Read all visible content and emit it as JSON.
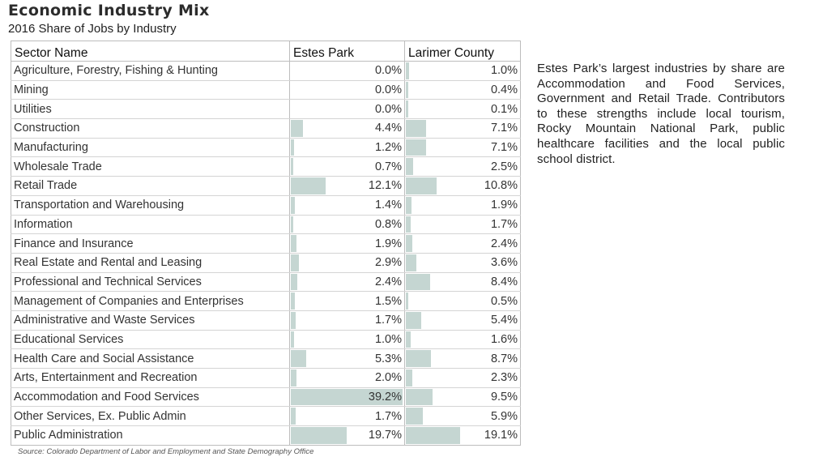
{
  "title": "Economic Industry Mix",
  "subtitle": "2016 Share of Jobs by Industry",
  "table": {
    "headers": [
      "Sector Name",
      "Estes Park",
      "Larimer County"
    ],
    "rows": [
      {
        "sector": "Agriculture, Forestry, Fishing & Hunting",
        "estes": 0.0,
        "larimer": 1.0
      },
      {
        "sector": "Mining",
        "estes": 0.0,
        "larimer": 0.4
      },
      {
        "sector": "Utilities",
        "estes": 0.0,
        "larimer": 0.1
      },
      {
        "sector": "Construction",
        "estes": 4.4,
        "larimer": 7.1
      },
      {
        "sector": "Manufacturing",
        "estes": 1.2,
        "larimer": 7.1
      },
      {
        "sector": "Wholesale Trade",
        "estes": 0.7,
        "larimer": 2.5
      },
      {
        "sector": "Retail Trade",
        "estes": 12.1,
        "larimer": 10.8
      },
      {
        "sector": "Transportation and Warehousing",
        "estes": 1.4,
        "larimer": 1.9
      },
      {
        "sector": "Information",
        "estes": 0.8,
        "larimer": 1.7
      },
      {
        "sector": "Finance and Insurance",
        "estes": 1.9,
        "larimer": 2.4
      },
      {
        "sector": "Real Estate and Rental and Leasing",
        "estes": 2.9,
        "larimer": 3.6
      },
      {
        "sector": "Professional and Technical Services",
        "estes": 2.4,
        "larimer": 8.4
      },
      {
        "sector": "Management of Companies and Enterprises",
        "estes": 1.5,
        "larimer": 0.5
      },
      {
        "sector": "Administrative and Waste Services",
        "estes": 1.7,
        "larimer": 5.4
      },
      {
        "sector": "Educational Services",
        "estes": 1.0,
        "larimer": 1.6
      },
      {
        "sector": "Health Care and Social Assistance",
        "estes": 5.3,
        "larimer": 8.7
      },
      {
        "sector": "Arts, Entertainment and Recreation",
        "estes": 2.0,
        "larimer": 2.3
      },
      {
        "sector": "Accommodation and Food Services",
        "estes": 39.2,
        "larimer": 9.5
      },
      {
        "sector": "Other Services, Ex. Public Admin",
        "estes": 1.7,
        "larimer": 5.9
      },
      {
        "sector": "Public Administration",
        "estes": 19.7,
        "larimer": 19.1
      }
    ]
  },
  "source": "Source: Colorado Department of Labor and Employment and State Demography Office",
  "note": "Estes Park’s largest industries by share are Accommodation and Food Services, Government and Retail Trade. Contributors to these strengths include local tourism, Rocky Mountain National Park, public healthcare facilities and the local public school district.",
  "colors": {
    "bar": "#c5d6d2",
    "border": "#bdbdbd"
  }
}
